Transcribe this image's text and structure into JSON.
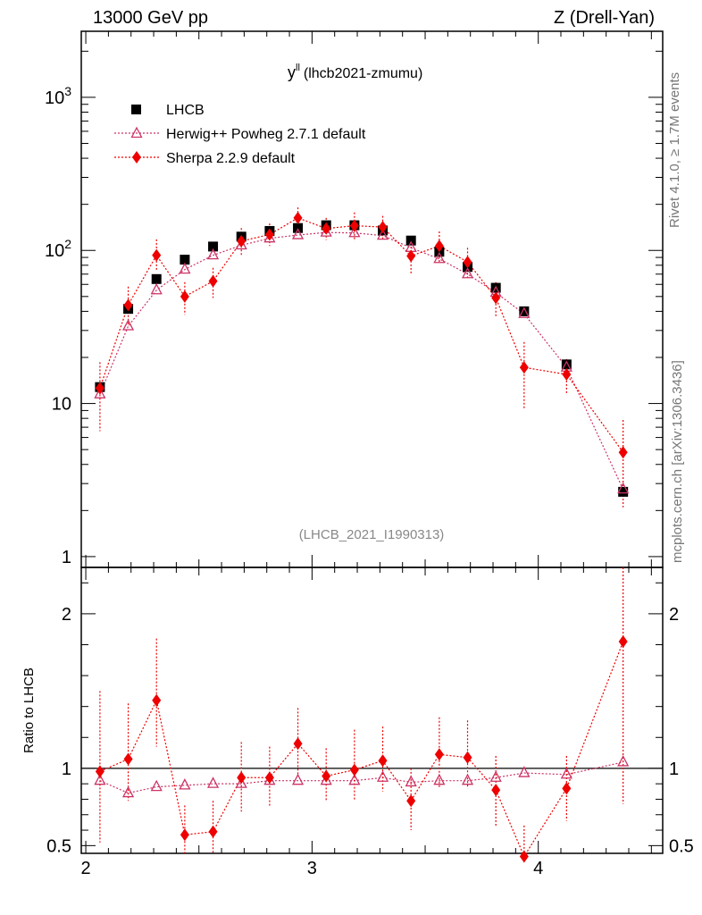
{
  "header": {
    "left": "13000 GeV pp",
    "right": "Z (Drell-Yan)"
  },
  "side_labels": {
    "rivet": "Rivet 4.1.0, ≥ 1.7M events",
    "mcplots": "mcplots.cern.ch [arXiv:1306.3436]"
  },
  "chart_data": {
    "type": "scatter",
    "title_main": "y",
    "title_sup": "ll",
    "title_paren": "(lhcb2021-zmumu)",
    "analysis_id": "(LHCB_2021_I1990313)",
    "xlim": [
      1.98,
      4.55
    ],
    "ylim_main": [
      0.85,
      2700
    ],
    "ylim_ratio": [
      0.45,
      2.3
    ],
    "x_ticks": [
      "2",
      "3",
      "4"
    ],
    "y_ticks_main": [
      "1",
      "10",
      "10^3"
    ],
    "y_ticks_ratio": [
      "0.5",
      "1",
      "2"
    ],
    "ratio_ylabel": "Ratio to LHCB",
    "x": [
      2.0625,
      2.1875,
      2.3125,
      2.4375,
      2.5625,
      2.6875,
      2.8125,
      2.9375,
      3.0625,
      3.1875,
      3.3125,
      3.4375,
      3.5625,
      3.6875,
      3.8125,
      3.9375,
      4.125,
      4.375
    ],
    "series": [
      {
        "name": "LHCB",
        "color": "#000000",
        "marker": "square",
        "values": [
          12.8,
          41.5,
          65,
          87,
          106,
          123,
          134,
          140,
          146,
          146,
          135,
          116,
          98,
          78,
          57,
          40,
          18,
          2.65
        ]
      },
      {
        "name": "Herwig++ Powheg 2.7.1 default",
        "color": "#cc3366",
        "marker": "triangle",
        "values": [
          11.5,
          32,
          55,
          75,
          93,
          108,
          120,
          126,
          131,
          130,
          125,
          104,
          88,
          70,
          53,
          38.5,
          17.2,
          2.75
        ],
        "ratio": [
          0.92,
          0.84,
          0.88,
          0.89,
          0.9,
          0.9,
          0.92,
          0.92,
          0.92,
          0.92,
          0.94,
          0.91,
          0.92,
          0.92,
          0.94,
          0.97,
          0.96,
          1.04
        ],
        "ratio_err": [
          0,
          0,
          0,
          0,
          0,
          0,
          0,
          0,
          0,
          0,
          0,
          0,
          0,
          0,
          0,
          0,
          0,
          0
        ],
        "err_up": [
          0,
          0,
          0,
          0,
          0,
          0,
          0,
          0,
          0,
          0,
          0,
          0,
          0,
          0,
          0,
          0,
          0,
          0
        ],
        "err_dn": [
          0,
          0,
          0,
          0,
          0,
          0,
          0,
          0,
          0,
          0,
          0,
          0,
          0,
          0,
          0,
          0,
          0,
          0
        ]
      },
      {
        "name": "Sherpa 2.2.9 default",
        "color": "#ee0000",
        "marker": "diamond",
        "values": [
          12.6,
          44,
          93,
          50,
          63,
          115,
          127,
          163,
          139,
          145,
          142,
          92,
          107,
          84,
          49,
          17.2,
          15.5,
          4.8
        ],
        "err_up": [
          6,
          14,
          25,
          12,
          14,
          25,
          23,
          28,
          24,
          32,
          26,
          26,
          26,
          20,
          13,
          8,
          4,
          3
        ],
        "err_dn": [
          6,
          12,
          20,
          12,
          14,
          22,
          20,
          24,
          22,
          30,
          24,
          23,
          23,
          18,
          12,
          8,
          4,
          2.7
        ],
        "ratio": [
          0.98,
          1.06,
          1.44,
          0.57,
          0.59,
          0.94,
          0.94,
          1.16,
          0.95,
          0.99,
          1.05,
          0.79,
          1.09,
          1.07,
          0.86,
          0.43,
          0.87,
          1.82
        ],
        "ratio_up": [
          0.52,
          0.36,
          0.4,
          0.19,
          0.2,
          0.23,
          0.2,
          0.23,
          0.18,
          0.26,
          0.22,
          0.21,
          0.24,
          0.24,
          0.22,
          0.2,
          0.21,
          0.9
        ],
        "ratio_dn": [
          0.46,
          0.27,
          0.3,
          0.2,
          0.18,
          0.22,
          0.19,
          0.2,
          0.16,
          0.2,
          0.2,
          0.19,
          0.22,
          0.2,
          0.24,
          0.04,
          0.21,
          1.05
        ]
      }
    ]
  }
}
